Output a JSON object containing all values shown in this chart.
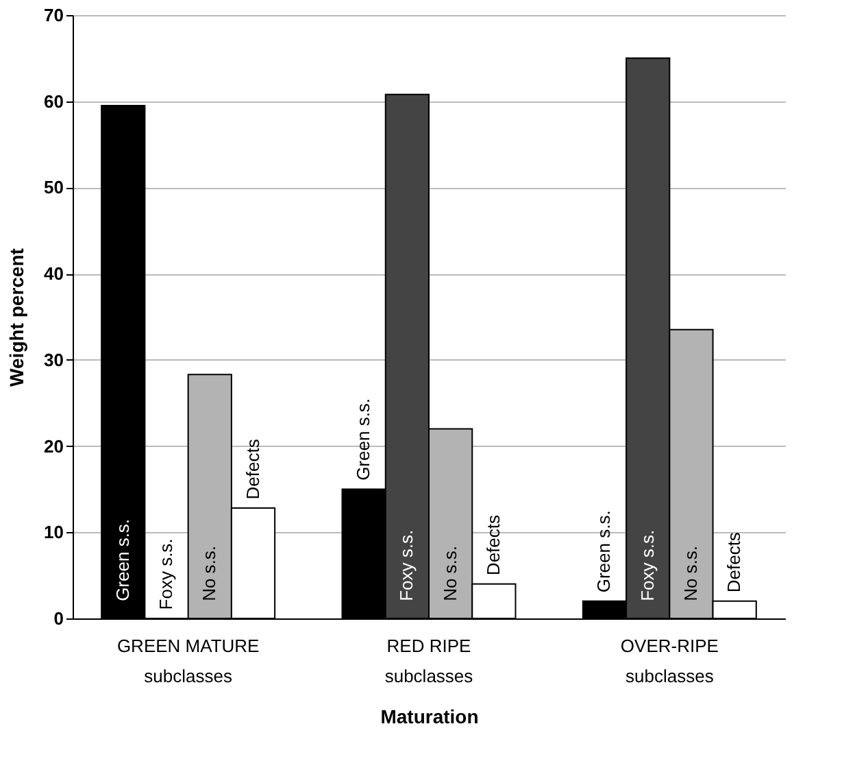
{
  "chart_data": {
    "type": "bar",
    "xlabel": "Maturation",
    "ylabel": "Weight percent",
    "categories": [
      "GREEN MATURE\nsubclasses",
      "RED RIPE\nsubclasses",
      "OVER-RIPE\nsubclasses"
    ],
    "series": [
      {
        "name": "Green s.s.",
        "color": "#000000",
        "values": [
          59.5,
          15,
          2
        ]
      },
      {
        "name": "Foxy s.s.",
        "color": "#444444",
        "values": [
          0,
          60.8,
          65
        ]
      },
      {
        "name": "No s.s.",
        "color": "#b3b3b3",
        "values": [
          28.3,
          22,
          33.5
        ]
      },
      {
        "name": "Defects",
        "color": "#ffffff",
        "values": [
          12.8,
          4,
          2
        ]
      }
    ],
    "ylim": [
      0,
      70
    ],
    "yticks": [
      0,
      10,
      20,
      30,
      40,
      50,
      60,
      70
    ],
    "grid": "y",
    "legend": false
  }
}
